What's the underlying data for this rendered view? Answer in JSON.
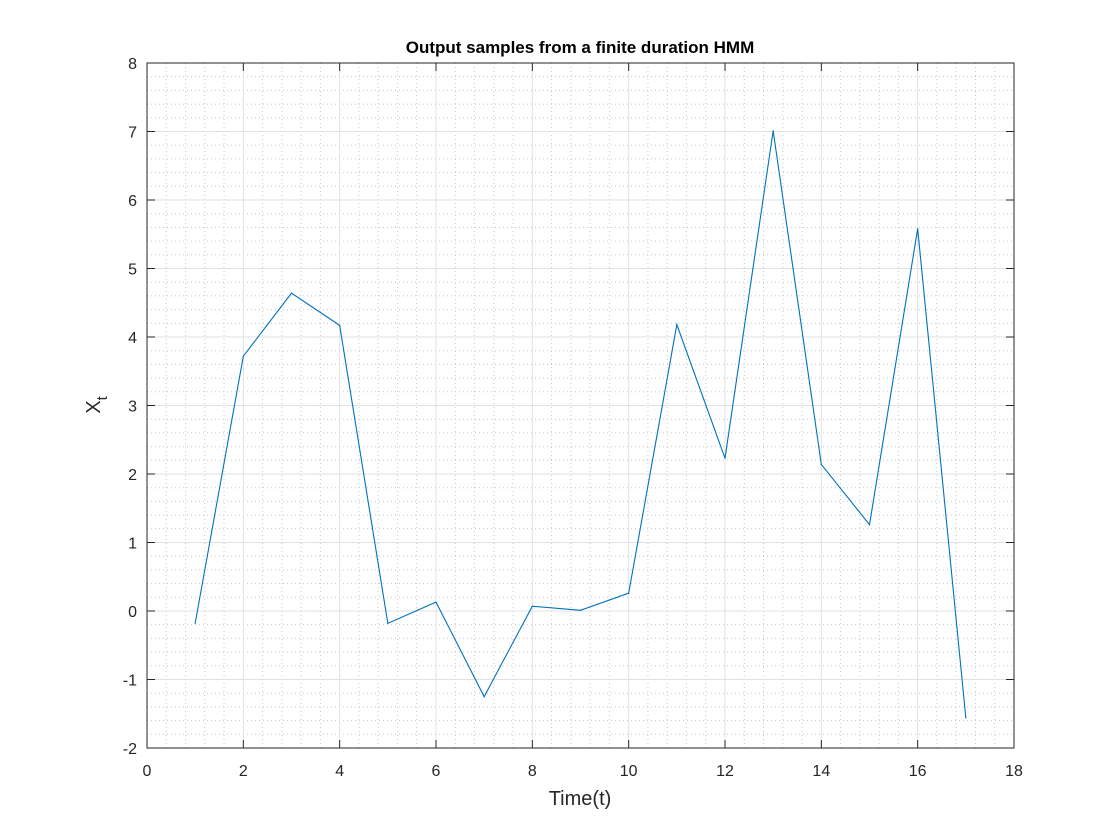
{
  "chart_data": {
    "type": "line",
    "title": "Output samples from a finite duration HMM",
    "xlabel": "Time(t)",
    "ylabel": {
      "base": "X",
      "subscript": "t"
    },
    "xlim": [
      0,
      18
    ],
    "ylim": [
      -2,
      8
    ],
    "x_ticks": [
      0,
      2,
      4,
      6,
      8,
      10,
      12,
      14,
      16,
      18
    ],
    "y_ticks": [
      -2,
      -1,
      0,
      1,
      2,
      3,
      4,
      5,
      6,
      7,
      8
    ],
    "x_tick_labels": [
      "0",
      "2",
      "4",
      "6",
      "8",
      "10",
      "12",
      "14",
      "16",
      "18"
    ],
    "y_tick_labels": [
      "-2",
      "-1",
      "0",
      "1",
      "2",
      "3",
      "4",
      "5",
      "6",
      "7",
      "8"
    ],
    "grid": true,
    "minor_grid": true,
    "series": [
      {
        "color": "#0072BD",
        "x": [
          1,
          2,
          3,
          4,
          5,
          6,
          7,
          8,
          9,
          10,
          11,
          12,
          13,
          14,
          15,
          16,
          17
        ],
        "y": [
          -0.18,
          3.72,
          4.64,
          4.17,
          -0.18,
          0.13,
          -1.25,
          0.07,
          0.01,
          0.26,
          4.18,
          2.23,
          7.01,
          2.14,
          1.26,
          5.58,
          -1.56
        ]
      }
    ]
  }
}
